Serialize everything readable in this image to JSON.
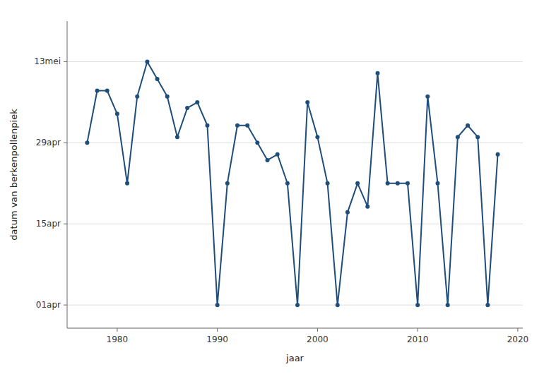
{
  "chart_data": {
    "type": "line",
    "x": [
      1977,
      1978,
      1979,
      1980,
      1981,
      1982,
      1983,
      1984,
      1985,
      1986,
      1987,
      1988,
      1989,
      1990,
      1991,
      1992,
      1993,
      1994,
      1995,
      1996,
      1997,
      1998,
      1999,
      2000,
      2001,
      2002,
      2003,
      2004,
      2005,
      2006,
      2007,
      2008,
      2009,
      2010,
      2011,
      2012,
      2013,
      2014,
      2015,
      2016,
      2017,
      2018
    ],
    "values": [
      119,
      128,
      128,
      124,
      112,
      127,
      133,
      130,
      127,
      120,
      125,
      126,
      122,
      91,
      112,
      122,
      122,
      119,
      116,
      117,
      112,
      91,
      126,
      120,
      112,
      91,
      107,
      112,
      108,
      131,
      112,
      112,
      112,
      91,
      127,
      112,
      91,
      120,
      122,
      120,
      91,
      117
    ],
    "color": "#1e4e79",
    "marker": "circle",
    "xlabel": "jaar",
    "ylabel": "datum van berkenpollenpiek",
    "xlim": [
      1975,
      2020.5
    ],
    "ylim": [
      87,
      140
    ],
    "xticks": [
      1980,
      1990,
      2000,
      2010,
      2020
    ],
    "yticks": [
      {
        "value": 91,
        "label": "01apr"
      },
      {
        "value": 105,
        "label": "15apr"
      },
      {
        "value": 119,
        "label": "29apr"
      },
      {
        "value": 133,
        "label": "13mei"
      }
    ],
    "grid": true
  }
}
